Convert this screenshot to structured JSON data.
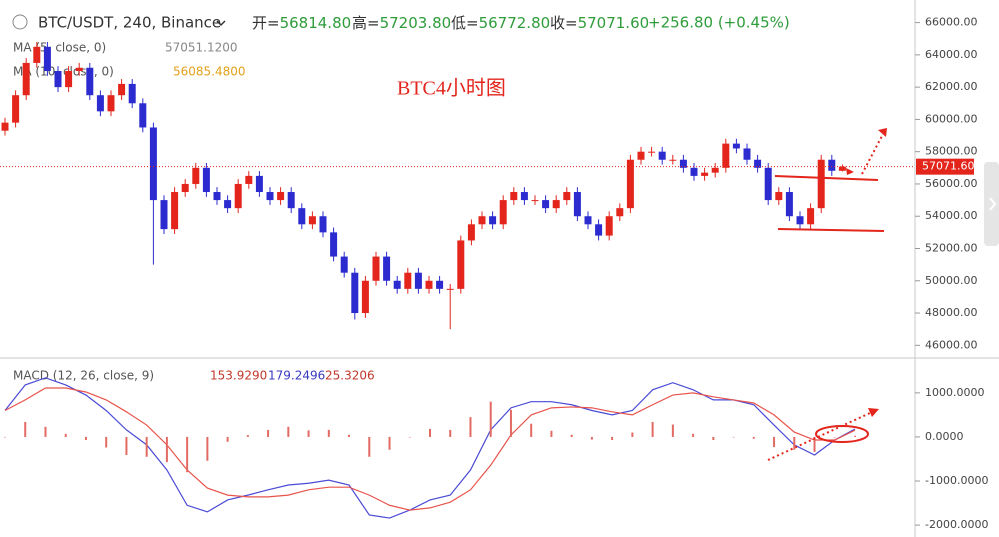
{
  "header": {
    "symbol": "BTC/USDT, 240, Binance",
    "ohlc": [
      {
        "label": "开=",
        "value": "56814.80"
      },
      {
        "label": "高=",
        "value": "57203.80"
      },
      {
        "label": "低=",
        "value": "56772.80"
      },
      {
        "label": "收=",
        "value": "57071.60"
      }
    ],
    "change": "+256.80 (+0.45%)"
  },
  "chart_data": [
    {
      "type": "candlestick",
      "legend": [
        {
          "name": "MA (5, close, 0)",
          "value": "57051.1200"
        },
        {
          "name": "MA (10, close, 0)",
          "value": "56085.4800"
        }
      ],
      "annotation": "BTC4小时图",
      "last_price_label": "57071.60",
      "up_color": "#e3251c",
      "down_color": "#2b2bd0",
      "open": [
        59300,
        59800,
        61500,
        63500,
        64500,
        63000,
        62000,
        63000,
        63200,
        61500,
        60500,
        61500,
        62200,
        61000,
        59500,
        55000,
        53200,
        55500,
        56000,
        57000,
        55500,
        55000,
        54500,
        56000,
        56500,
        55500,
        55000,
        55500,
        54500,
        53500,
        54000,
        53000,
        51500,
        50500,
        48000,
        50000,
        51500,
        50000,
        49500,
        50500,
        49500,
        50000,
        49500,
        49500,
        52500,
        53500,
        54000,
        53500,
        55000,
        55500,
        55000,
        55000,
        54500,
        55000,
        55500,
        54000,
        53500,
        52800,
        54000,
        54500,
        57500,
        58000,
        58000,
        57500,
        57500,
        57000,
        56500,
        56700,
        57000,
        58500,
        58200,
        57500,
        57000,
        55000,
        55500,
        54000,
        53500,
        54500,
        57500,
        56814.8
      ],
      "high": [
        60100,
        61800,
        63800,
        64800,
        64800,
        63300,
        63300,
        63500,
        63500,
        61800,
        61800,
        62500,
        62500,
        61300,
        59800,
        55300,
        55800,
        56300,
        57300,
        57300,
        55800,
        55300,
        56300,
        56800,
        56800,
        55800,
        55800,
        55800,
        54800,
        54300,
        54300,
        53300,
        51800,
        50800,
        50300,
        51800,
        51800,
        50300,
        50800,
        50800,
        50300,
        50300,
        49800,
        52800,
        53800,
        54300,
        54300,
        55300,
        55800,
        55800,
        55300,
        55300,
        55300,
        55800,
        55800,
        54300,
        53800,
        54300,
        54800,
        57800,
        58300,
        58300,
        58300,
        57800,
        57800,
        57300,
        57000,
        57300,
        58800,
        58800,
        58500,
        57800,
        57300,
        55800,
        55800,
        54300,
        54800,
        57800,
        57800,
        57203.8
      ],
      "low": [
        59000,
        59500,
        61200,
        63200,
        62700,
        61700,
        61700,
        62700,
        61200,
        60200,
        60200,
        61200,
        60700,
        59200,
        51000,
        52900,
        52900,
        55200,
        55700,
        55200,
        54700,
        54200,
        54200,
        55700,
        55200,
        54700,
        54700,
        54200,
        53200,
        53200,
        52700,
        51200,
        50200,
        47600,
        47700,
        49700,
        49700,
        49200,
        49200,
        49200,
        49200,
        49200,
        47000,
        49200,
        52200,
        53200,
        53200,
        53200,
        54700,
        54700,
        54700,
        54200,
        54200,
        54700,
        53700,
        53200,
        52500,
        52500,
        53700,
        54200,
        57200,
        57700,
        57200,
        57200,
        56700,
        56200,
        56200,
        56400,
        56700,
        57900,
        57200,
        56700,
        54700,
        54700,
        53700,
        53200,
        53200,
        54200,
        56500,
        56772.8
      ],
      "close": [
        59800,
        61500,
        63500,
        64500,
        63000,
        62000,
        63000,
        63200,
        61500,
        60500,
        61500,
        62200,
        61000,
        59500,
        55000,
        53200,
        55500,
        56000,
        57000,
        55500,
        55000,
        54500,
        56000,
        56500,
        55500,
        55000,
        55500,
        54500,
        53500,
        54000,
        53000,
        51500,
        50500,
        48000,
        50000,
        51500,
        50000,
        49500,
        50500,
        49500,
        50000,
        49500,
        49500,
        52500,
        53500,
        54000,
        53500,
        55000,
        55500,
        55000,
        55000,
        54500,
        55000,
        55500,
        54000,
        53500,
        52800,
        54000,
        54500,
        57500,
        58000,
        58000,
        57500,
        57500,
        57000,
        56500,
        56700,
        57000,
        58500,
        58200,
        57500,
        57000,
        55000,
        55500,
        54000,
        53500,
        54500,
        57500,
        56814.8,
        57071.6
      ],
      "ylim": [
        45400,
        67400
      ],
      "yticks": [
        {
          "value": 46000,
          "label": "46000.00"
        },
        {
          "value": 48000,
          "label": "48000.00"
        },
        {
          "value": 50000,
          "label": "50000.00"
        },
        {
          "value": 52000,
          "label": "52000.00"
        },
        {
          "value": 54000,
          "label": "54000.00"
        },
        {
          "value": 56000,
          "label": "56000.00"
        },
        {
          "value": 58000,
          "label": "58000.00"
        },
        {
          "value": 60000,
          "label": "60000.00"
        },
        {
          "value": 62000,
          "label": "62000.00"
        },
        {
          "value": 64000,
          "label": "64000.00"
        },
        {
          "value": 66000,
          "label": "66000.00"
        }
      ]
    },
    {
      "type": "macd",
      "title": "MACD (12, 26, close, 9)",
      "legend_values": [
        "153.9290",
        "179.2496",
        "25.3206"
      ],
      "series": [
        {
          "name": "MACD",
          "color": "#4a4ad6",
          "values": [
            600,
            1180,
            1340,
            1180,
            950,
            600,
            160,
            -180,
            -750,
            -1550,
            -1700,
            -1430,
            -1320,
            -1200,
            -1090,
            -1050,
            -980,
            -1090,
            -1770,
            -1840,
            -1660,
            -1430,
            -1320,
            -750,
            160,
            660,
            800,
            800,
            730,
            600,
            500,
            600,
            1070,
            1230,
            1070,
            840,
            840,
            730,
            270,
            -180,
            -410,
            -70,
            179.2496
          ]
        },
        {
          "name": "Signal",
          "color": "#e8534b",
          "values": [
            600,
            840,
            1110,
            1110,
            1020,
            840,
            570,
            270,
            -180,
            -750,
            -1160,
            -1320,
            -1360,
            -1360,
            -1320,
            -1200,
            -1140,
            -1140,
            -1320,
            -1550,
            -1660,
            -1610,
            -1480,
            -1200,
            -640,
            45,
            500,
            660,
            680,
            660,
            570,
            500,
            730,
            950,
            1000,
            910,
            840,
            770,
            500,
            110,
            -70,
            -70,
            153.929
          ]
        },
        {
          "name": "Histogram",
          "color": "#e36a63",
          "values": [
            0,
            340,
            230,
            70,
            -70,
            -240,
            -410,
            -450,
            -570,
            -800,
            -540,
            -110,
            40,
            160,
            230,
            150,
            160,
            50,
            -450,
            -290,
            0,
            180,
            160,
            450,
            800,
            615,
            300,
            140,
            50,
            -60,
            -70,
            100,
            340,
            280,
            70,
            -70,
            0,
            -40,
            -230,
            -290,
            -340,
            0,
            25.3206
          ]
        }
      ],
      "ylim": [
        -2270,
        1700
      ],
      "yticks": [
        {
          "value": -2000,
          "label": "-2000.0000"
        },
        {
          "value": -1000,
          "label": "-1000.0000"
        },
        {
          "value": 0,
          "label": "0.0000"
        },
        {
          "value": 1000,
          "label": "1000.0000"
        }
      ]
    }
  ]
}
